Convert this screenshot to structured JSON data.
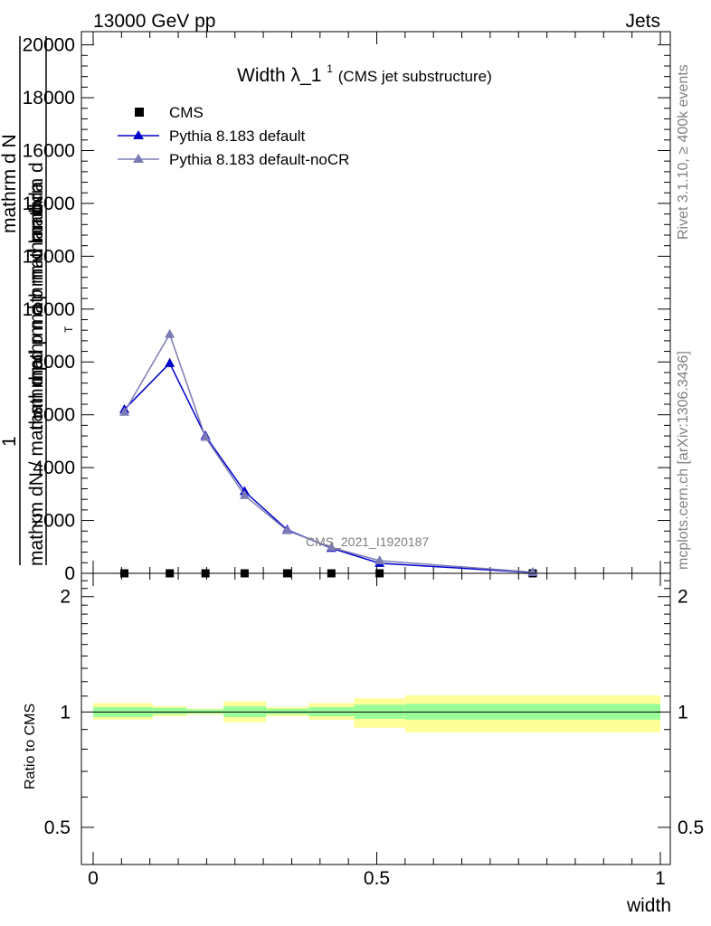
{
  "header": {
    "energy": "13000 GeV pp",
    "category": "Jets"
  },
  "side_labels": {
    "rivet": "Rivet 3.1.10, ≥ 400k events",
    "mcplots": "mcplots.cern.ch [arXiv:1306.3436]"
  },
  "watermark": "CMS_2021_I1920187",
  "title": {
    "main": "Width λ_1",
    "sup": "1",
    "sub": "(CMS jet substructure)"
  },
  "ylabel_main": {
    "one": "1",
    "denominator_line1": "mathrm dN / mathrm d p",
    "denominator_line2": "mathrm d N",
    "numerator_line1": "mathrm d",
    "numerator_line2": "mathrm d p mathrm d lambda",
    "numerator_line3": "mathrm d p mathrm d",
    "t_sub": "T"
  },
  "ylabel_ratio": "Ratio to CMS",
  "xlabel": "width",
  "colors": {
    "cms": "#000000",
    "default": "#0000cc",
    "nocr": "#7b7bb5",
    "band_inner": "#99ff99",
    "band_outer": "#ffff99"
  },
  "legend": [
    {
      "label": "CMS",
      "key": "cms"
    },
    {
      "label": "Pythia 8.183 default",
      "key": "default"
    },
    {
      "label": "Pythia 8.183 default-noCR",
      "key": "nocr"
    }
  ],
  "chart_data": [
    {
      "type": "line",
      "panel": "main",
      "xlim": [
        0,
        1
      ],
      "ylim": [
        0,
        20500
      ],
      "y_ticks": [
        0,
        2000,
        4000,
        6000,
        8000,
        10000,
        12000,
        14000,
        16000,
        18000,
        20000
      ],
      "y_tick_labels": [
        "0",
        "2000",
        "4000",
        "6000",
        "8000",
        "10000",
        "12000",
        "14000",
        "16000",
        "18000",
        "20000"
      ],
      "series": [
        {
          "name": "CMS",
          "x": [
            0.055,
            0.135,
            0.198,
            0.267,
            0.342,
            0.42,
            0.505,
            0.775
          ],
          "y": [
            0,
            0,
            0,
            0,
            0,
            0,
            0,
            0
          ]
        },
        {
          "name": "Pythia 8.183 default",
          "x": [
            0.055,
            0.135,
            0.198,
            0.267,
            0.342,
            0.42,
            0.505,
            0.775
          ],
          "y": [
            6200,
            7950,
            5200,
            3100,
            1650,
            950,
            380,
            30
          ],
          "err": [
            80,
            150,
            80,
            60,
            40,
            30,
            20,
            10
          ]
        },
        {
          "name": "Pythia 8.183 default-noCR",
          "x": [
            0.055,
            0.135,
            0.198,
            0.267,
            0.342,
            0.42,
            0.505,
            0.775
          ],
          "y": [
            6100,
            9050,
            5150,
            2950,
            1620,
            980,
            480,
            40
          ],
          "err": [
            80,
            150,
            80,
            60,
            40,
            30,
            20,
            10
          ]
        }
      ]
    },
    {
      "type": "ratio",
      "panel": "ratio",
      "xlim": [
        0,
        1
      ],
      "ylim": [
        0.4,
        2.3
      ],
      "y_scale": "log",
      "y_ticks": [
        0.5,
        1,
        2
      ],
      "y_tick_labels": [
        "0.5",
        "1",
        "2"
      ],
      "x_ticks": [
        0,
        0.5,
        1
      ],
      "x_tick_labels": [
        "0",
        "0.5",
        "1"
      ],
      "reference": 1,
      "bins": [
        {
          "lo": 0.0,
          "hi": 0.105,
          "inner": [
            0.97,
            1.03
          ],
          "outer": [
            0.955,
            1.055
          ]
        },
        {
          "lo": 0.105,
          "hi": 0.165,
          "inner": [
            0.985,
            1.025
          ],
          "outer": [
            0.975,
            1.035
          ]
        },
        {
          "lo": 0.165,
          "hi": 0.23,
          "inner": [
            0.99,
            1.015
          ],
          "outer": [
            0.985,
            1.02
          ]
        },
        {
          "lo": 0.23,
          "hi": 0.305,
          "inner": [
            0.97,
            1.035
          ],
          "outer": [
            0.94,
            1.065
          ]
        },
        {
          "lo": 0.305,
          "hi": 0.38,
          "inner": [
            0.985,
            1.02
          ],
          "outer": [
            0.975,
            1.03
          ]
        },
        {
          "lo": 0.38,
          "hi": 0.46,
          "inner": [
            0.975,
            1.03
          ],
          "outer": [
            0.955,
            1.055
          ]
        },
        {
          "lo": 0.46,
          "hi": 0.55,
          "inner": [
            0.96,
            1.045
          ],
          "outer": [
            0.91,
            1.085
          ]
        },
        {
          "lo": 0.55,
          "hi": 1.0,
          "inner": [
            0.955,
            1.05
          ],
          "outer": [
            0.885,
            1.105
          ]
        }
      ]
    }
  ]
}
